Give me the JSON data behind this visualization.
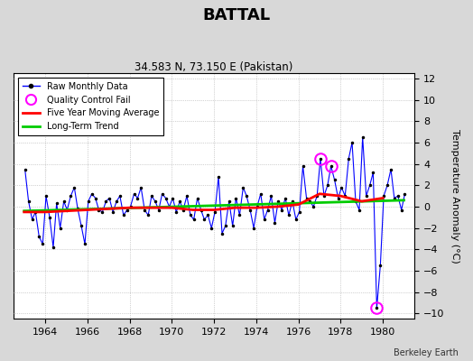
{
  "title": "BATTAL",
  "subtitle": "34.583 N, 73.150 E (Pakistan)",
  "ylabel": "Temperature Anomaly (°C)",
  "credit": "Berkeley Earth",
  "ylim": [
    -10.5,
    12.5
  ],
  "yticks": [
    -10,
    -8,
    -6,
    -4,
    -2,
    0,
    2,
    4,
    6,
    8,
    10,
    12
  ],
  "xlim": [
    1962.5,
    1981.5
  ],
  "xticks": [
    1964,
    1966,
    1968,
    1970,
    1972,
    1974,
    1976,
    1978,
    1980
  ],
  "background_color": "#d8d8d8",
  "plot_bg_color": "#ffffff",
  "raw_color": "#0000ff",
  "ma_color": "#ff0000",
  "trend_color": "#00cc00",
  "qc_color": "#ff00ff",
  "raw_data": {
    "times": [
      1963.04,
      1963.21,
      1963.38,
      1963.54,
      1963.71,
      1963.88,
      1964.04,
      1964.21,
      1964.38,
      1964.54,
      1964.71,
      1964.88,
      1965.04,
      1965.21,
      1965.38,
      1965.54,
      1965.71,
      1965.88,
      1966.04,
      1966.21,
      1966.38,
      1966.54,
      1966.71,
      1966.88,
      1967.04,
      1967.21,
      1967.38,
      1967.54,
      1967.71,
      1967.88,
      1968.04,
      1968.21,
      1968.38,
      1968.54,
      1968.71,
      1968.88,
      1969.04,
      1969.21,
      1969.38,
      1969.54,
      1969.71,
      1969.88,
      1970.04,
      1970.21,
      1970.38,
      1970.54,
      1970.71,
      1970.88,
      1971.04,
      1971.21,
      1971.38,
      1971.54,
      1971.71,
      1971.88,
      1972.04,
      1972.21,
      1972.38,
      1972.54,
      1972.71,
      1972.88,
      1973.04,
      1973.21,
      1973.38,
      1973.54,
      1973.71,
      1973.88,
      1974.04,
      1974.21,
      1974.38,
      1974.54,
      1974.71,
      1974.88,
      1975.04,
      1975.21,
      1975.38,
      1975.54,
      1975.71,
      1975.88,
      1976.04,
      1976.21,
      1976.38,
      1976.54,
      1976.71,
      1976.88,
      1977.04,
      1977.21,
      1977.38,
      1977.54,
      1977.71,
      1977.88,
      1978.04,
      1978.21,
      1978.38,
      1978.54,
      1978.71,
      1978.88,
      1979.04,
      1979.21,
      1979.38,
      1979.54,
      1979.71,
      1979.88,
      1980.04,
      1980.21,
      1980.38,
      1980.54,
      1980.71,
      1980.88,
      1981.04
    ],
    "values": [
      3.5,
      0.5,
      -1.2,
      -0.5,
      -2.8,
      -3.5,
      1.0,
      -1.0,
      -3.8,
      0.3,
      -2.0,
      0.5,
      -0.3,
      1.0,
      1.8,
      -0.2,
      -1.8,
      -3.5,
      0.5,
      1.2,
      0.8,
      -0.3,
      -0.5,
      0.5,
      0.8,
      -0.5,
      0.5,
      1.0,
      -0.8,
      -0.3,
      0.0,
      1.2,
      0.8,
      1.8,
      -0.3,
      -0.8,
      1.0,
      0.5,
      -0.3,
      1.2,
      0.8,
      0.0,
      0.8,
      -0.5,
      0.5,
      -0.3,
      1.0,
      -0.8,
      -1.2,
      0.8,
      -0.3,
      -1.2,
      -0.8,
      -2.0,
      -0.5,
      2.8,
      -2.5,
      -1.8,
      0.5,
      -1.8,
      0.8,
      -0.8,
      1.8,
      1.0,
      -0.3,
      -2.0,
      0.0,
      1.2,
      -1.2,
      -0.3,
      1.0,
      -1.5,
      0.5,
      -0.3,
      0.8,
      -0.8,
      0.5,
      -1.2,
      -0.5,
      3.8,
      0.8,
      0.5,
      0.0,
      1.0,
      4.5,
      1.0,
      2.0,
      3.8,
      2.5,
      0.8,
      1.8,
      1.0,
      4.5,
      6.0,
      0.5,
      -0.3,
      6.5,
      1.0,
      2.0,
      3.2,
      -9.5,
      -5.5,
      1.0,
      2.0,
      3.5,
      0.8,
      1.0,
      -0.3,
      1.2
    ]
  },
  "ma_times": [
    1963.0,
    1964.0,
    1965.0,
    1966.0,
    1967.0,
    1968.0,
    1969.0,
    1970.0,
    1971.0,
    1972.0,
    1973.0,
    1974.0,
    1975.0,
    1976.0,
    1977.0,
    1978.0,
    1979.0,
    1980.0
  ],
  "ma_values": [
    -0.5,
    -0.5,
    -0.4,
    -0.3,
    -0.2,
    -0.1,
    -0.1,
    -0.1,
    -0.3,
    -0.3,
    -0.1,
    -0.1,
    0.0,
    0.2,
    1.2,
    1.0,
    0.5,
    0.8
  ],
  "trend_times": [
    1963.0,
    1981.0
  ],
  "trend_values": [
    -0.4,
    0.6
  ],
  "qc_fail_times": [
    1977.04,
    1977.54,
    1979.71
  ],
  "qc_fail_values": [
    4.5,
    3.8,
    -9.5
  ]
}
